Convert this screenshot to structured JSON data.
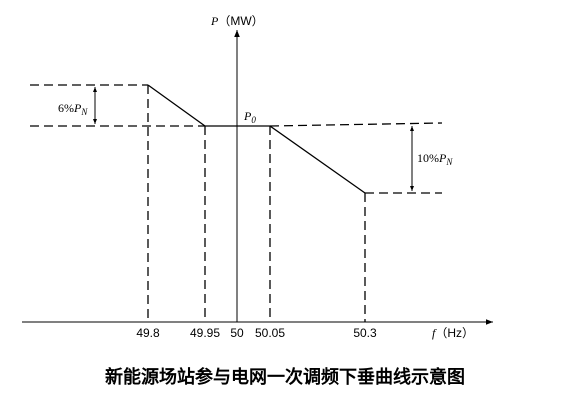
{
  "axes": {
    "y": {
      "symbol": "P",
      "unit": "（MW）"
    },
    "x": {
      "symbol": "f",
      "unit": "（Hz）"
    }
  },
  "p0": {
    "symbol": "P",
    "sub": "0"
  },
  "annotations": [
    {
      "prefix": "6%",
      "symbol": "P",
      "sub": "N"
    },
    {
      "prefix": "10%",
      "symbol": "P",
      "sub": "N"
    }
  ],
  "x_labels": [
    "49.8",
    "49.95",
    "50",
    "50.05",
    "50.3"
  ],
  "caption": "新能源场站参与电网一次调频下垂曲线示意图"
}
